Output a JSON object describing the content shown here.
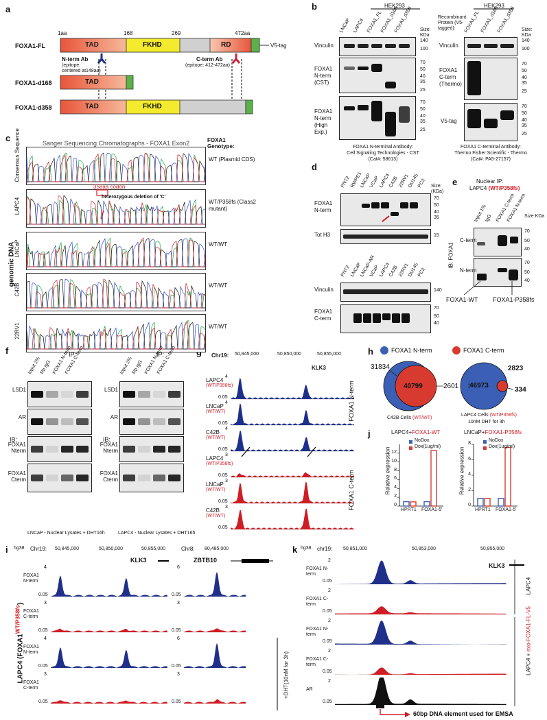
{
  "panels": [
    "a",
    "b",
    "c",
    "d",
    "e",
    "f",
    "g",
    "h",
    "i",
    "j",
    "k"
  ],
  "a": {
    "fl_label": "FOXA1-FL",
    "d168_label": "FOXA1-d168",
    "d358_label": "FOXA1-d358",
    "aa1": "1aa",
    "aa168": "168",
    "aa269": "269",
    "aa472": "472aa",
    "tad": "TAD",
    "fkhd": "FKHD",
    "rd": "RD",
    "v5": "V5-tag",
    "nterm_ab": "N-term Ab",
    "nterm_epitope": "(epitope:\ncentered at148aa)",
    "cterm_ab": "C-term Ab",
    "cterm_epitope": "(epitope: 412-472aa)"
  },
  "b": {
    "hek1": "HEK293",
    "hek2": "HEK293",
    "lanes1": [
      "LNCaP",
      "LAPC4",
      "FOXA1_FL",
      "FOXA1_d168",
      "FOXA1_d358"
    ],
    "lanes2": [
      "FOXA1_FL",
      "FOXA1_d168",
      "FOXA1_d358"
    ],
    "recomb": "Recombinant Protein (V5-tagged):",
    "size": "Size: KDa",
    "rows1": [
      "Vinculin",
      "FOXA1 N-term (CST)",
      "FOXA1 N-term (High Exp.)"
    ],
    "rows2": [
      "Vinculin",
      "FOXA1 C-term (Thermo)",
      "V5-tag"
    ],
    "markers_vinc": [
      "140",
      "100"
    ],
    "markers_fox": [
      "70",
      "50",
      "40",
      "35",
      "25"
    ],
    "caption1": "FOXA1 N-terminal Antibody:\nCell Signaling Technologies - CST\n(Cat#: 58613)",
    "caption2": "FOXA1 C-terminal Antibody:\nThermo Fisher Scientific - Thermo\n(Cat#: PA5-27157)"
  },
  "c": {
    "title": "Sanger Sequencing Chromatographs - FOXA1 Exon2",
    "geno_header": "FOXA1 Genotype:",
    "rows": [
      {
        "label": "Consensus Sequence",
        "geno": "WT (Plasmid CDS)"
      },
      {
        "label": "LAPC4",
        "geno": "WT/P358fs (Class2 mutant)"
      },
      {
        "label": "LNCaP",
        "geno": "WT/WT"
      },
      {
        "label": "C42B",
        "geno": "WT/WT"
      },
      {
        "label": "22RV1",
        "geno": "WT/WT"
      }
    ],
    "codon": "358aa codon",
    "deletion": "heterozygous deletion of 'C'",
    "side": "genomic DNA"
  },
  "d": {
    "lanes_top": [
      "PNT2",
      "RWPE1",
      "LNCaP",
      "VCaP",
      "LAPC4",
      "C42B",
      "22RV1",
      "DU145",
      "PC3"
    ],
    "lanes_bot": [
      "PNT2",
      "LNCaP",
      "LNCaP-AR",
      "VCaP",
      "LAPC4",
      "C42B",
      "22RV1",
      "DU145",
      "PC3"
    ],
    "rows_top": [
      "FOXA1 N-term",
      "Tot H3"
    ],
    "rows_bot": [
      "Vinculin",
      "FOXA1 C-term"
    ],
    "size": "Size: (KDa)",
    "m_top": [
      "70",
      "50",
      "40",
      "35",
      "15"
    ],
    "m_bot": [
      "140",
      "70",
      "50",
      "40"
    ]
  },
  "e": {
    "title": "Nuclear IP:",
    "cell": "LAPC4",
    "geno": "(WT/P358fs)",
    "lanes": [
      "Input 1%",
      "IgG",
      "FOXA1 C-term",
      "FOXA1 N-term"
    ],
    "size": "Size KDa",
    "rows": [
      "C-term",
      "N-term"
    ],
    "ib": "IB: FOXA1",
    "m": [
      "70",
      "50",
      "40",
      "70",
      "50",
      "40"
    ],
    "wt": "FOXA1-WT",
    "mut": "FOXA1-P358fs"
  },
  "f": {
    "ip": "IP:",
    "lanes": [
      "Input 2%",
      "Rb IgG",
      "FOXA1 N-term",
      "FOXA1 C-term"
    ],
    "rows": [
      "LSD1",
      "AR",
      "FOXA1 Nterm",
      "FOXA1 Cterm"
    ],
    "ib": "IB:",
    "cap1": "LNCaP - Nuclear Lysates + DHT16h",
    "cap2": "LAPC4 - Nuclear Lysates + DHT16h"
  },
  "g": {
    "chr": "Chr19:",
    "coords": [
      "50,845,000",
      "50,850,000",
      "50,855,000"
    ],
    "gene": "KLK3",
    "tracks": [
      {
        "cell": "LAPC4",
        "geno": "(WT/P358fs)",
        "color": "#1f2f8a",
        "max": "4"
      },
      {
        "cell": "LNCaP",
        "geno": "(WT/WT)",
        "color": "#1f2f8a",
        "max": "4"
      },
      {
        "cell": "C42B",
        "geno": "(WT/WT)",
        "color": "#1f2f8a",
        "max": "4"
      },
      {
        "cell": "LAPC4",
        "geno": "(WT/P358fs)",
        "color": "#d01c24",
        "max": "3"
      },
      {
        "cell": "LNCaP",
        "geno": "(WT/WT)",
        "color": "#d01c24",
        "max": "3"
      },
      {
        "cell": "C42B",
        "geno": "(WT/WT)",
        "color": "#d01c24",
        "max": "3"
      }
    ],
    "min": "0.05",
    "side1": "FOXA1 N-term",
    "side2": "FOXA1 C-term"
  },
  "h": {
    "leg1": "FOXA1 N-term",
    "leg2": "FOXA1 C-term",
    "v1": {
      "left": "31834",
      "overlap": "40799",
      "right": "2601"
    },
    "v2": {
      "left": "46973",
      "overlap": "2823",
      "right": "334"
    },
    "cap1": "C42B Cells",
    "cap1g": "(WT/WT)",
    "cap2": "LAPC4 Cells",
    "cap2g": "(WT/P358fs)",
    "cap2b": "10nM DHT for 3h",
    "colors": {
      "nterm": "#3b5fb5",
      "cterm": "#d93a2f"
    }
  },
  "j": {
    "title1a": "LAPC4+",
    "title1b": "FOXA1-WT",
    "title2a": "LNCaP+",
    "title2b": "FOXA1-P358fs",
    "legend": [
      "NoDox",
      "Dox(1ug/ml)"
    ],
    "ylabel": "Relative expression",
    "cats": [
      "HPRT1",
      "FOXA1-5'"
    ],
    "chart_data": [
      {
        "type": "bar",
        "categories": [
          "HPRT1",
          "FOXA1-5'"
        ],
        "series": [
          {
            "name": "NoDox",
            "values": [
              1.0,
              1.0
            ]
          },
          {
            "name": "Dox(1ug/ml)",
            "values": [
              0.95,
              12.6
            ]
          }
        ],
        "ylim": [
          0,
          14
        ],
        "yticks": [
          "0",
          "2",
          "4",
          "6",
          "8",
          "10",
          "12"
        ]
      },
      {
        "type": "bar",
        "categories": [
          "HPRT1",
          "FOXA1-5'"
        ],
        "series": [
          {
            "name": "NoDox",
            "values": [
              1.0,
              1.0
            ]
          },
          {
            "name": "Dox(1ug/ml)",
            "values": [
              1.0,
              7.6
            ]
          }
        ],
        "ylim": [
          0,
          8
        ],
        "yticks": [
          "0",
          "2",
          "4",
          "6",
          "8"
        ]
      }
    ]
  },
  "i": {
    "hg": "hg38",
    "chr": "Chr19:",
    "coords": [
      "50,845,000",
      "50,850,000",
      "50,855,000"
    ],
    "gene": "KLK3",
    "chr2": "Chr8:",
    "coord2": "80,485,000",
    "gene2": "ZBTB10",
    "rows": [
      "FOXA1 N-term",
      "FOXA1 C-term",
      "FOXA1 N-term",
      "FOXA1 C-term"
    ],
    "maxes_left": [
      "4",
      "3",
      "4",
      "3"
    ],
    "maxes_right": [
      "6",
      "3",
      "6",
      "3"
    ],
    "min": "0.05",
    "side": "LAPC4 (FOXA1",
    "side_geno": "WT/P358fs",
    "dht": "+DHT(10nM for 3h)"
  },
  "k": {
    "hg": "hg38",
    "chr": "chr19:",
    "coords": [
      "50,851,000",
      "50,853,000",
      "50,855,000"
    ],
    "gene": "KLK3",
    "rows": [
      "FOXA1 N-term",
      "FOXA1 C-term",
      "FOXA1 N-term",
      "FOXA1 C-term",
      "AR"
    ],
    "maxes": [
      "2",
      "2",
      "2",
      "2",
      "2"
    ],
    "min": "0.05",
    "side1": "LAPC4",
    "side2a": "LAPC4 + ",
    "side2b": "exo-FOXA1-FL-V5",
    "emsa": "60bp DNA element used for EMSA"
  }
}
